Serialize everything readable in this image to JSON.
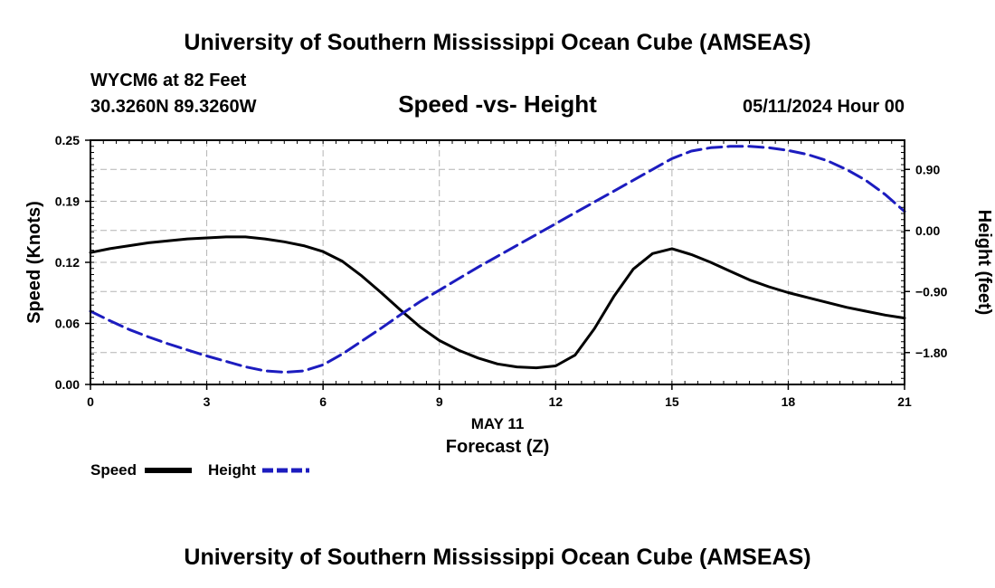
{
  "header": {
    "title_top": "University of Southern Mississippi Ocean Cube (AMSEAS)",
    "station": "WYCM6 at 82 Feet",
    "coords": "30.3260N  89.3260W",
    "subtitle": "Speed -vs- Height",
    "datetime": "05/11/2024 Hour 00",
    "title_bottom": "University of Southern Mississippi Ocean Cube (AMSEAS)"
  },
  "chart_data": {
    "type": "line",
    "title": "Speed -vs- Height",
    "xlabel": "Forecast (Z)",
    "xlabel_date": "MAY 11",
    "ylabel_left": "Speed (Knots)",
    "ylabel_right": "Height (feet)",
    "xlim": [
      0,
      21
    ],
    "ylim_left": [
      0,
      0.25
    ],
    "ylim_right": [
      -2.27,
      1.33
    ],
    "x_ticks": [
      0,
      3,
      6,
      9,
      12,
      15,
      18,
      21
    ],
    "x_tick_labels": [
      "0",
      "3",
      "6",
      "9",
      "12",
      "15",
      "18",
      "21"
    ],
    "y_left_ticks": [
      0,
      0.0625,
      0.125,
      0.1875,
      0.25
    ],
    "y_left_tick_labels": [
      "0.00",
      "0.06",
      "0.12",
      "0.19",
      "0.25"
    ],
    "y_right_ticks": [
      -1.8,
      -0.9,
      0.0,
      0.9
    ],
    "y_right_tick_labels": [
      "−1.80",
      "−0.90",
      "0.00",
      "0.90"
    ],
    "grid": true,
    "legend_position": "bottom-left",
    "series": [
      {
        "name": "Speed",
        "axis": "left",
        "color": "#000000",
        "dash": "solid",
        "x": [
          0,
          0.5,
          1,
          1.5,
          2,
          2.5,
          3,
          3.5,
          4,
          4.5,
          5,
          5.5,
          6,
          6.5,
          7,
          7.5,
          8,
          8.5,
          9,
          9.5,
          10,
          10.5,
          11,
          11.5,
          12,
          12.5,
          13,
          13.5,
          14,
          14.5,
          15,
          15.5,
          16,
          16.5,
          17,
          17.5,
          18,
          18.5,
          19,
          19.5,
          20,
          20.5,
          21
        ],
        "values": [
          0.135,
          0.139,
          0.142,
          0.145,
          0.147,
          0.149,
          0.15,
          0.151,
          0.151,
          0.149,
          0.146,
          0.142,
          0.136,
          0.126,
          0.111,
          0.094,
          0.076,
          0.059,
          0.045,
          0.035,
          0.027,
          0.021,
          0.018,
          0.017,
          0.019,
          0.03,
          0.057,
          0.09,
          0.118,
          0.134,
          0.139,
          0.133,
          0.125,
          0.116,
          0.107,
          0.1,
          0.094,
          0.089,
          0.084,
          0.079,
          0.075,
          0.071,
          0.068
        ]
      },
      {
        "name": "Height",
        "axis": "right",
        "color": "#1c1cbf",
        "dash": "dashed",
        "x": [
          0,
          0.5,
          1,
          1.5,
          2,
          2.5,
          3,
          3.5,
          4,
          4.5,
          5,
          5.5,
          6,
          6.5,
          7,
          7.5,
          8,
          8.5,
          9,
          9.5,
          10,
          10.5,
          11,
          11.5,
          12,
          12.5,
          13,
          13.5,
          14,
          14.5,
          15,
          15.5,
          16,
          16.5,
          17,
          17.5,
          18,
          18.5,
          19,
          19.5,
          20,
          20.5,
          21
        ],
        "values": [
          -1.19,
          -1.33,
          -1.46,
          -1.57,
          -1.67,
          -1.76,
          -1.85,
          -1.93,
          -2.01,
          -2.07,
          -2.09,
          -2.07,
          -1.98,
          -1.82,
          -1.63,
          -1.44,
          -1.24,
          -1.05,
          -0.88,
          -0.71,
          -0.54,
          -0.38,
          -0.22,
          -0.06,
          0.1,
          0.26,
          0.42,
          0.58,
          0.74,
          0.9,
          1.06,
          1.17,
          1.22,
          1.24,
          1.24,
          1.22,
          1.18,
          1.12,
          1.03,
          0.9,
          0.74,
          0.53,
          0.28
        ]
      }
    ]
  },
  "legend": {
    "speed_label": "Speed",
    "height_label": "Height",
    "speed_color": "#000000",
    "height_color": "#1c1cbf"
  }
}
